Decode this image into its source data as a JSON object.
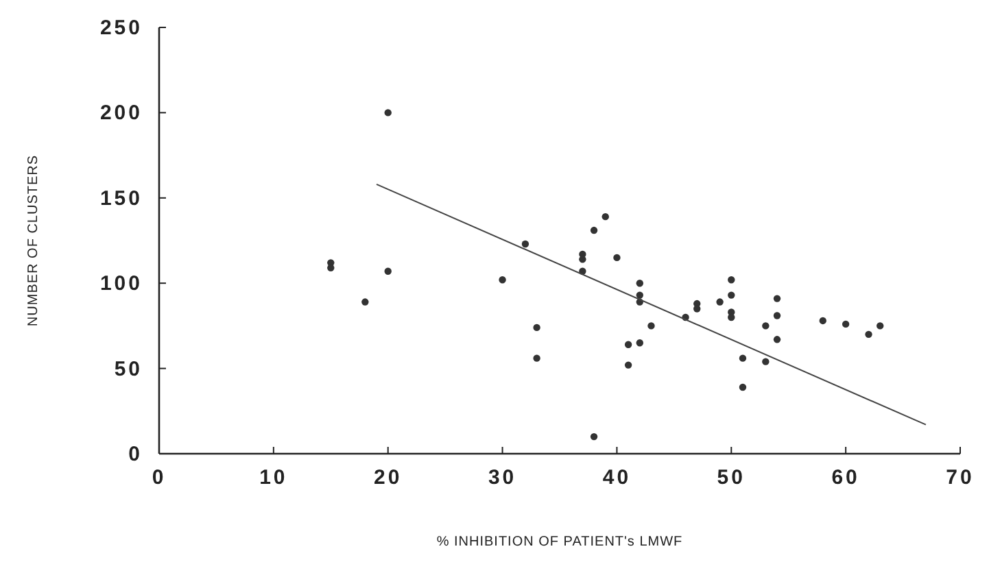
{
  "chart_data": {
    "type": "scatter",
    "xlabel": "% INHIBITION OF PATIENT's LMWF",
    "ylabel": "NUMBER OF CLUSTERS",
    "xlim": [
      0,
      70
    ],
    "ylim": [
      0,
      250
    ],
    "xticks": [
      0,
      10,
      20,
      30,
      40,
      50,
      60,
      70
    ],
    "yticks": [
      0,
      50,
      100,
      150,
      200,
      250
    ],
    "grid": false,
    "marker": "circle",
    "series": [
      {
        "color": "#333333",
        "x": [
          15,
          15,
          18,
          20,
          20,
          30,
          32,
          33,
          33,
          37,
          37,
          37,
          38,
          38,
          39,
          40,
          41,
          41,
          42,
          42,
          42,
          42,
          43,
          46,
          47,
          47,
          49,
          50,
          50,
          50,
          50,
          51,
          51,
          53,
          53,
          54,
          54,
          54,
          58,
          60,
          62,
          63
        ],
        "values": [
          112,
          109,
          89,
          200,
          107,
          102,
          123,
          74,
          56,
          117,
          114,
          107,
          131,
          10,
          139,
          115,
          64,
          52,
          100,
          93,
          89,
          65,
          75,
          80,
          88,
          85,
          89,
          102,
          93,
          83,
          80,
          56,
          39,
          75,
          54,
          91,
          81,
          67,
          78,
          76,
          70,
          75
        ]
      },
      {
        "type": "line",
        "color": "#444444",
        "x": [
          19,
          67
        ],
        "values": [
          158,
          17
        ],
        "marker": "none",
        "line_style": "solid"
      }
    ]
  }
}
